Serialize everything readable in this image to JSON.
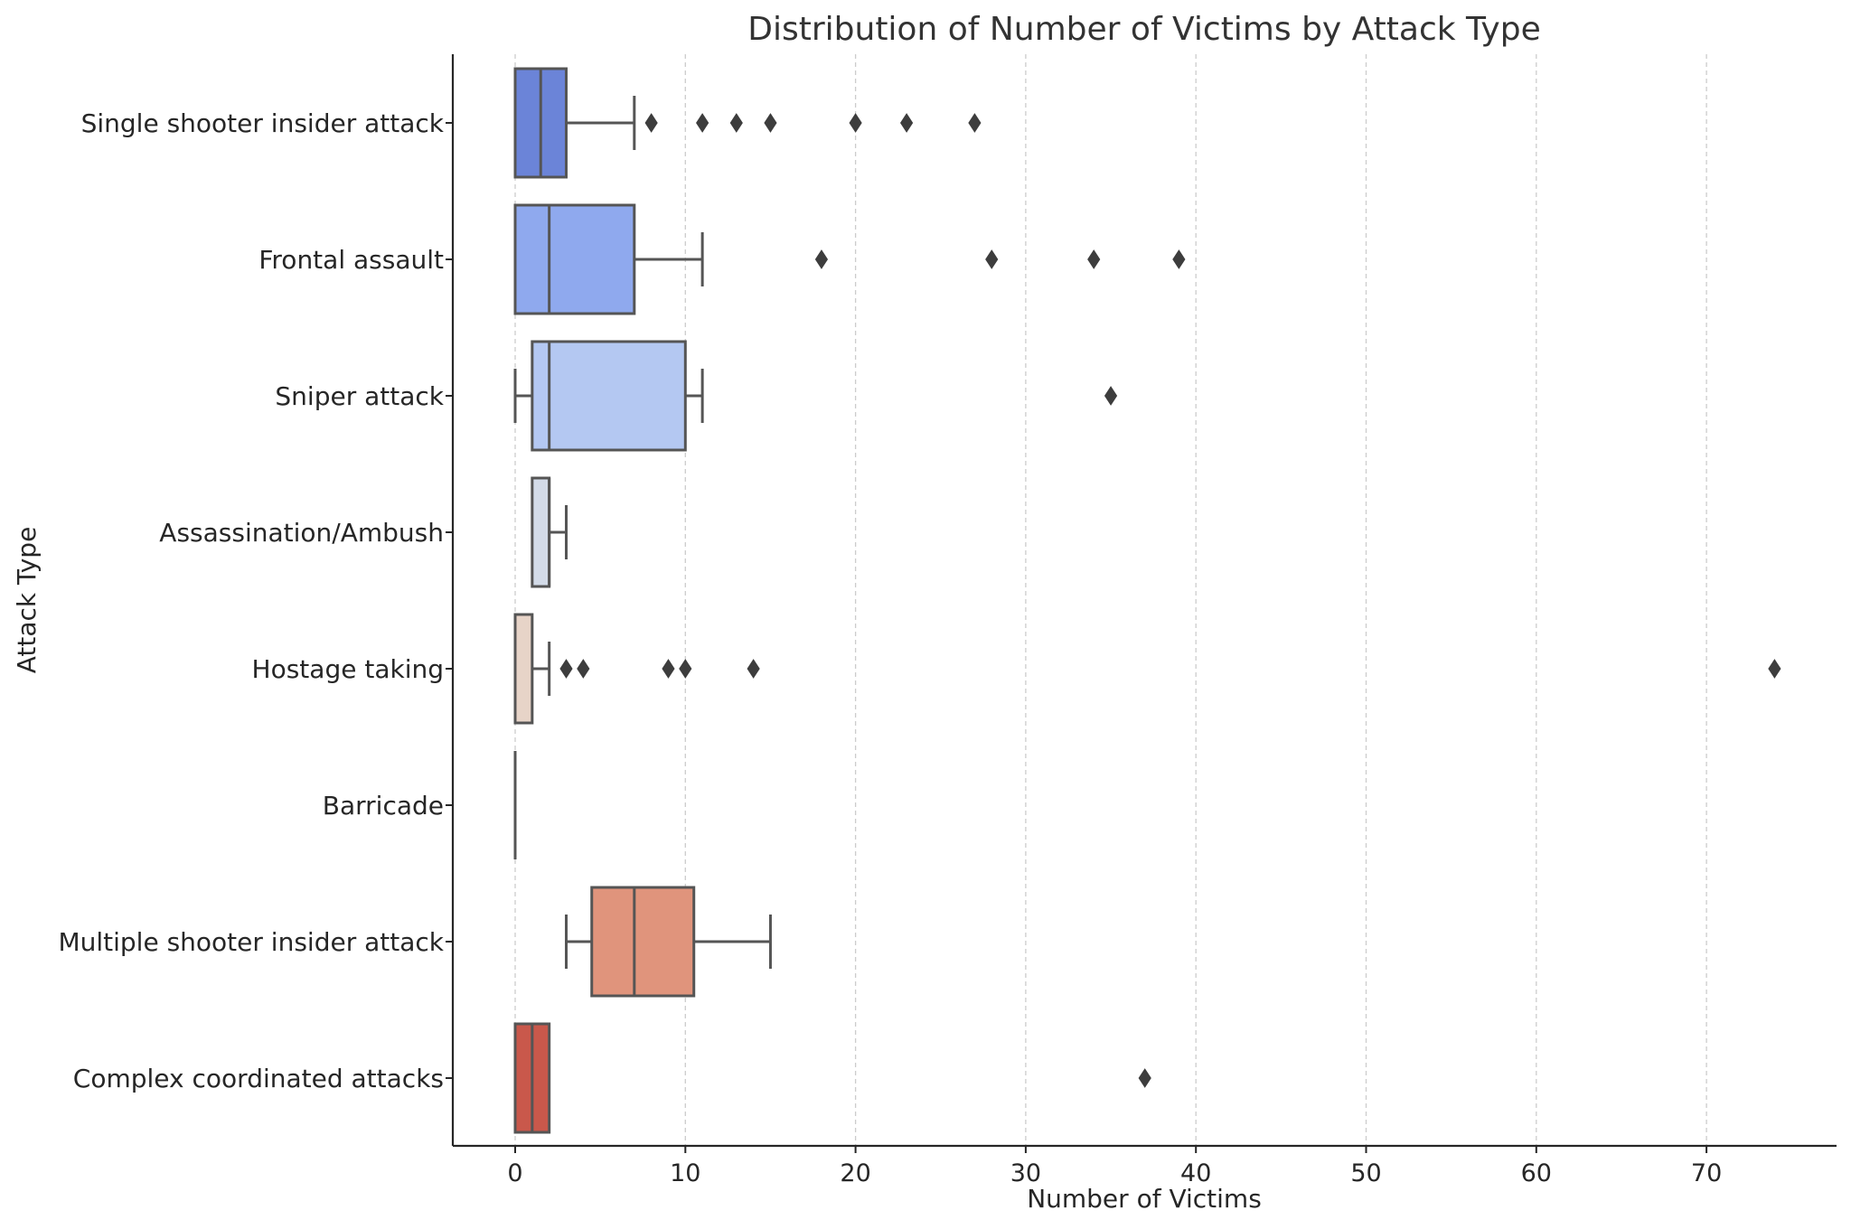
{
  "chart_data": {
    "type": "box",
    "orientation": "horizontal",
    "title": "Distribution of Number of Victims by Attack Type",
    "xlabel": "Number of Victims",
    "ylabel": "Attack Type",
    "xlim": [
      -3.7,
      77.5
    ],
    "xticks": [
      0,
      10,
      20,
      30,
      40,
      50,
      60,
      70
    ],
    "grid": "vertical dashed",
    "categories": [
      "Single shooter insider attack",
      "Frontal assault",
      "Sniper attack",
      "Assassination/Ambush",
      "Hostage taking",
      "Barricade",
      "Multiple shooter insider attack",
      "Complex coordinated attacks"
    ],
    "boxes": [
      {
        "category": "Single shooter insider attack",
        "whisker_low": 0,
        "q1": 0,
        "median": 1.5,
        "q3": 3,
        "whisker_high": 7,
        "outliers": [
          8,
          11,
          13,
          15,
          20,
          23,
          27
        ],
        "color": "#6b84d8"
      },
      {
        "category": "Frontal assault",
        "whisker_low": 0,
        "q1": 0,
        "median": 2,
        "q3": 7,
        "whisker_high": 11,
        "outliers": [
          18,
          28,
          34,
          39
        ],
        "color": "#8fa9ee"
      },
      {
        "category": "Sniper attack",
        "whisker_low": 0,
        "q1": 1,
        "median": 2,
        "q3": 10,
        "whisker_high": 11,
        "outliers": [
          35
        ],
        "color": "#b4c8f2"
      },
      {
        "category": "Assassination/Ambush",
        "whisker_low": 1,
        "q1": 1,
        "median": 2,
        "q3": 2,
        "whisker_high": 3,
        "outliers": [],
        "color": "#d3dbe8"
      },
      {
        "category": "Hostage taking",
        "whisker_low": 0,
        "q1": 0,
        "median": 0,
        "q3": 1,
        "whisker_high": 2,
        "outliers": [
          3,
          4,
          9,
          10,
          14,
          74
        ],
        "color": "#e7d4c8"
      },
      {
        "category": "Barricade",
        "whisker_low": 0,
        "q1": 0,
        "median": 0,
        "q3": 0,
        "whisker_high": 0,
        "outliers": [],
        "color": "#efc4ad"
      },
      {
        "category": "Multiple shooter insider attack",
        "whisker_low": 3,
        "q1": 4.5,
        "median": 7,
        "q3": 10.5,
        "whisker_high": 15,
        "outliers": [],
        "color": "#e0947c"
      },
      {
        "category": "Complex coordinated attacks",
        "whisker_low": 0,
        "q1": 0,
        "median": 1,
        "q3": 2,
        "whisker_high": 2,
        "outliers": [
          37
        ],
        "color": "#c9584b"
      }
    ],
    "line_color": "#555555",
    "grid_color": "#cccccc"
  }
}
